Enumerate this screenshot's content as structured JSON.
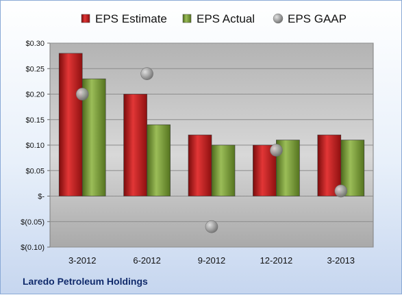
{
  "chart_data": {
    "type": "bar",
    "categories": [
      "3-2012",
      "6-2012",
      "9-2012",
      "12-2012",
      "3-2013"
    ],
    "series": [
      {
        "name": "EPS Estimate",
        "kind": "bar",
        "color": "#cc1f1f",
        "values": [
          0.28,
          0.2,
          0.12,
          0.1,
          0.12
        ]
      },
      {
        "name": "EPS Actual",
        "kind": "bar",
        "color": "#7d9c3a",
        "values": [
          0.23,
          0.14,
          0.1,
          0.11,
          0.11
        ]
      },
      {
        "name": "EPS GAAP",
        "kind": "marker",
        "color": "#9a9a9a",
        "values": [
          0.2,
          0.24,
          -0.06,
          0.09,
          0.01
        ]
      }
    ],
    "ylim": [
      -0.1,
      0.3
    ],
    "yticks": [
      {
        "value": 0.3,
        "label": "$0.30"
      },
      {
        "value": 0.25,
        "label": "$0.25"
      },
      {
        "value": 0.2,
        "label": "$0.20"
      },
      {
        "value": 0.15,
        "label": "$0.15"
      },
      {
        "value": 0.1,
        "label": "$0.10"
      },
      {
        "value": 0.05,
        "label": "$0.05"
      },
      {
        "value": 0.0,
        "label": "$-"
      },
      {
        "value": -0.05,
        "label": "$(0.05)"
      },
      {
        "value": -0.1,
        "label": "$(0.10)"
      }
    ],
    "grid": true,
    "legend_position": "top",
    "title": "",
    "xlabel": "",
    "ylabel": ""
  },
  "caption": "Laredo Petroleum Holdings"
}
